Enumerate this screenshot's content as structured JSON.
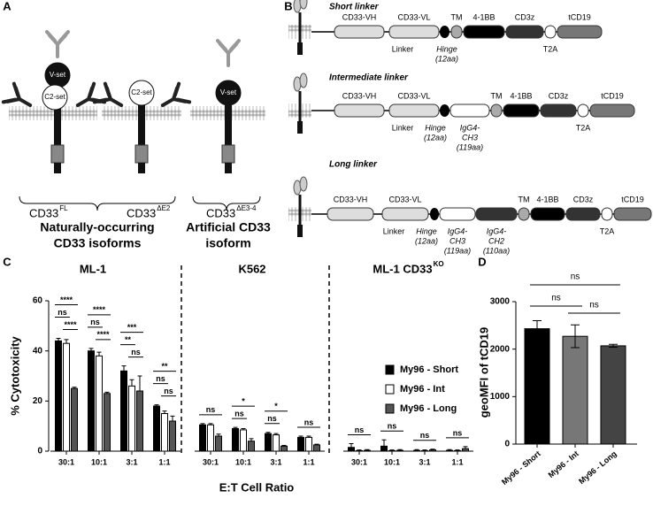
{
  "panels": {
    "A": {
      "label": "A",
      "domains": [
        "V-set",
        "C2-set",
        "C2-set",
        "V-set"
      ],
      "isoforms": [
        {
          "name": "CD33",
          "sup": "FL"
        },
        {
          "name": "CD33",
          "sup": "ΔE2"
        },
        {
          "name": "CD33",
          "sup": "ΔE3-4"
        }
      ],
      "groups": [
        [
          "Naturally-occurring",
          "CD33 isoforms"
        ],
        [
          "Artificial CD33",
          "isoform"
        ]
      ]
    },
    "B": {
      "label": "B",
      "constructs": [
        {
          "title": "Short linker",
          "labels": [
            "CD33-VH",
            "CD33-VL",
            "Linker",
            "Hinge",
            "(12aa)",
            "TM",
            "4-1BB",
            "CD3z",
            "T2A",
            "tCD19"
          ]
        },
        {
          "title": "Intermediate linker",
          "labels": [
            "CD33-VH",
            "CD33-VL",
            "Linker",
            "Hinge",
            "(12aa)",
            "IgG4-",
            "CH3",
            "(119aa)",
            "TM",
            "4-1BB",
            "CD3z",
            "T2A",
            "tCD19"
          ]
        },
        {
          "title": "Long linker",
          "labels": [
            "CD33-VH",
            "CD33-VL",
            "Linker",
            "Hinge",
            "(12aa)",
            "IgG4-",
            "CH3",
            "(119aa)",
            "IgG4-",
            "CH2",
            "(110aa)",
            "TM",
            "4-1BB",
            "CD3z",
            "T2A",
            "tCD19"
          ]
        }
      ]
    }
  },
  "chart_data": [
    {
      "label": "C",
      "type": "grouped_bar",
      "ylabel": "% Cytotoxicity",
      "xlabel": "E:T Cell Ratio",
      "ylim": [
        0,
        60
      ],
      "yticks": [
        0,
        20,
        40,
        60
      ],
      "series": [
        {
          "name": "My96 - Short",
          "color": "#000000"
        },
        {
          "name": "My96 - Int",
          "color": "#ffffff"
        },
        {
          "name": "My96 - Long",
          "color": "#555555"
        }
      ],
      "groups": [
        {
          "title": "ML-1",
          "categories": [
            "30:1",
            "10:1",
            "3:1",
            "1:1"
          ],
          "series": [
            {
              "values": [
                44,
                40,
                32,
                18
              ],
              "errors": [
                1,
                1,
                2,
                0.5
              ]
            },
            {
              "values": [
                43,
                38,
                26,
                15
              ],
              "errors": [
                1.5,
                1.5,
                2.5,
                1
              ]
            },
            {
              "values": [
                25,
                23,
                24,
                12
              ],
              "errors": [
                0.5,
                0.5,
                6,
                2
              ]
            }
          ],
          "significance": [
            [
              "****",
              "ns",
              "****"
            ],
            [
              "****",
              "ns",
              "****"
            ],
            [
              "***",
              "**",
              "ns"
            ],
            [
              "**",
              "ns",
              "ns"
            ]
          ]
        },
        {
          "title": "K562",
          "categories": [
            "30:1",
            "10:1",
            "3:1",
            "1:1"
          ],
          "series": [
            {
              "values": [
                10.5,
                9,
                7,
                5.5
              ],
              "errors": [
                0.5,
                0.5,
                0.5,
                0.5
              ]
            },
            {
              "values": [
                10.5,
                8.5,
                6.5,
                5.5
              ],
              "errors": [
                0.5,
                0.5,
                0.5,
                0.5
              ]
            },
            {
              "values": [
                6,
                4,
                2,
                2.5
              ],
              "errors": [
                0.8,
                1,
                0.3,
                0.3
              ]
            }
          ],
          "significance": [
            [
              "ns"
            ],
            [
              "*",
              "ns"
            ],
            [
              "*",
              "ns"
            ],
            [
              "ns"
            ]
          ]
        },
        {
          "title": "ML-1 CD33",
          "title_sup": "KO",
          "categories": [
            "30:1",
            "10:1",
            "3:1",
            "1:1"
          ],
          "series": [
            {
              "values": [
                1.5,
                2,
                0.3,
                0.3
              ],
              "errors": [
                1.5,
                2.5,
                0.3,
                0.3
              ]
            },
            {
              "values": [
                0.2,
                0.2,
                0.2,
                0.2
              ],
              "errors": [
                0.3,
                0.3,
                0.3,
                0.3
              ]
            },
            {
              "values": [
                0.3,
                0.3,
                0.5,
                1
              ],
              "errors": [
                0.3,
                0.3,
                0.3,
                0.8
              ]
            }
          ],
          "significance": [
            [
              "ns"
            ],
            [
              "ns"
            ],
            [
              "ns"
            ],
            [
              "ns"
            ]
          ]
        }
      ]
    },
    {
      "label": "D",
      "type": "bar",
      "ylabel": "geoMFI of tCD19",
      "ylim": [
        0,
        3000
      ],
      "yticks": [
        0,
        1000,
        2000,
        3000
      ],
      "categories": [
        "My96 - Short",
        "My96 - Int",
        "My96 - Long"
      ],
      "values": [
        2430,
        2270,
        2070
      ],
      "errors": [
        170,
        240,
        30
      ],
      "colors": [
        "#000000",
        "#777777",
        "#444444"
      ],
      "significance": [
        "ns",
        "ns",
        "ns"
      ]
    }
  ]
}
